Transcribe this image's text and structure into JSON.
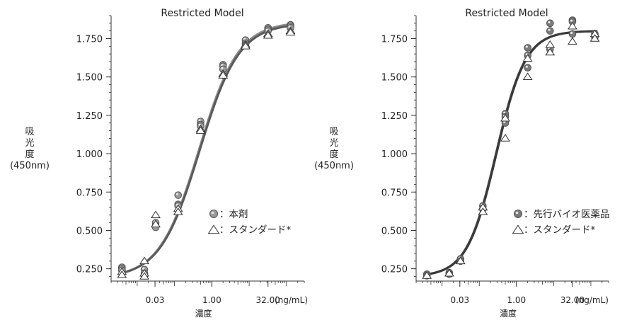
{
  "chart_data": [
    {
      "type": "scatter",
      "title": "Restricted Model",
      "ylabel_lines": [
        "吸",
        "光",
        "度",
        "(450nm)"
      ],
      "xlabel": "濃度",
      "x_unit": "(ng/mL)",
      "x_scale": "log",
      "xlim": [
        0.002,
        300
      ],
      "ylim": [
        0.17,
        1.9
      ],
      "yticks": [
        0.25,
        0.5,
        0.75,
        1.0,
        1.25,
        1.5,
        1.75
      ],
      "ytick_labels": [
        "0.250",
        "0.500",
        "0.750",
        "1.000",
        "1.250",
        "1.500",
        "1.750"
      ],
      "xticks": [
        0.03,
        1.0,
        32.0
      ],
      "xtick_labels": [
        "0.03",
        "1.00",
        "32.00"
      ],
      "series": [
        {
          "name": "：本剤",
          "marker": "circle",
          "color": "#9a9a9a",
          "x": [
            0.0039,
            0.0039,
            0.0039,
            0.0156,
            0.0156,
            0.0156,
            0.0313,
            0.0313,
            0.0313,
            0.125,
            0.125,
            0.125,
            0.5,
            0.5,
            0.5,
            2,
            2,
            2,
            8,
            8,
            8,
            32,
            32,
            32,
            128,
            128,
            128
          ],
          "y": [
            0.26,
            0.25,
            0.24,
            0.245,
            0.22,
            0.205,
            0.55,
            0.53,
            0.52,
            0.73,
            0.67,
            0.66,
            1.21,
            1.19,
            1.18,
            1.58,
            1.57,
            1.55,
            1.74,
            1.72,
            1.71,
            1.82,
            1.81,
            1.8,
            1.84,
            1.83,
            1.82
          ]
        },
        {
          "name": "：スタンダード*",
          "marker": "triangle",
          "color": "#ffffff",
          "x": [
            0.0039,
            0.0039,
            0.0156,
            0.0156,
            0.0156,
            0.0313,
            0.0313,
            0.125,
            0.125,
            0.5,
            0.5,
            2,
            2,
            8,
            8,
            32,
            32,
            128,
            128
          ],
          "y": [
            0.23,
            0.21,
            0.3,
            0.22,
            0.2,
            0.6,
            0.54,
            0.64,
            0.62,
            1.16,
            1.15,
            1.52,
            1.51,
            1.71,
            1.7,
            1.78,
            1.77,
            1.8,
            1.79
          ]
        }
      ],
      "fit_curves": [
        {
          "of": "：本剤",
          "color": "#8a8a8a",
          "bottom": 0.19,
          "top": 1.86,
          "ec50": 0.45,
          "hill": 0.82
        },
        {
          "of": "：スタンダード*",
          "color": "#5a5a5a",
          "bottom": 0.19,
          "top": 1.85,
          "ec50": 0.47,
          "hill": 0.82
        }
      ]
    },
    {
      "type": "scatter",
      "title": "Restricted Model",
      "ylabel_lines": [
        "吸",
        "光",
        "度",
        "(450nm)"
      ],
      "xlabel": "濃度",
      "x_unit": "(ng/mL)",
      "x_scale": "log",
      "xlim": [
        0.002,
        300
      ],
      "ylim": [
        0.17,
        1.9
      ],
      "yticks": [
        0.25,
        0.5,
        0.75,
        1.0,
        1.25,
        1.5,
        1.75
      ],
      "ytick_labels": [
        "0.250",
        "0.500",
        "0.750",
        "1.000",
        "1.250",
        "1.500",
        "1.750"
      ],
      "xticks": [
        0.03,
        1.0,
        32.0
      ],
      "xtick_labels": [
        "0.03",
        "1.00",
        "32.00"
      ],
      "series": [
        {
          "name": "：先行バイオ医薬品",
          "marker": "circle",
          "color": "#7a7a7a",
          "x": [
            0.0039,
            0.0039,
            0.0156,
            0.0156,
            0.0313,
            0.0313,
            0.125,
            0.125,
            0.5,
            0.5,
            0.5,
            2,
            2,
            2,
            8,
            8,
            8,
            32,
            32,
            32,
            128,
            128
          ],
          "y": [
            0.215,
            0.205,
            0.225,
            0.215,
            0.315,
            0.3,
            0.66,
            0.64,
            1.26,
            1.24,
            1.2,
            1.69,
            1.64,
            1.56,
            1.85,
            1.8,
            1.68,
            1.87,
            1.86,
            1.78,
            1.78,
            1.76
          ]
        },
        {
          "name": "：スタンダード*",
          "marker": "triangle",
          "color": "#ffffff",
          "x": [
            0.0039,
            0.0156,
            0.0313,
            0.125,
            0.125,
            0.5,
            0.5,
            2,
            2,
            8,
            8,
            32,
            32,
            128,
            128
          ],
          "y": [
            0.205,
            0.22,
            0.3,
            0.65,
            0.62,
            1.23,
            1.1,
            1.62,
            1.5,
            1.71,
            1.66,
            1.83,
            1.73,
            1.78,
            1.75
          ]
        }
      ],
      "fit_curves": [
        {
          "of": "：先行バイオ医薬品",
          "color": "#4a4a4a",
          "bottom": 0.2,
          "top": 1.8,
          "ec50": 0.28,
          "hill": 1.1
        },
        {
          "of": "：スタンダード*",
          "color": "#3a3a3a",
          "bottom": 0.2,
          "top": 1.8,
          "ec50": 0.29,
          "hill": 1.1
        }
      ]
    }
  ]
}
